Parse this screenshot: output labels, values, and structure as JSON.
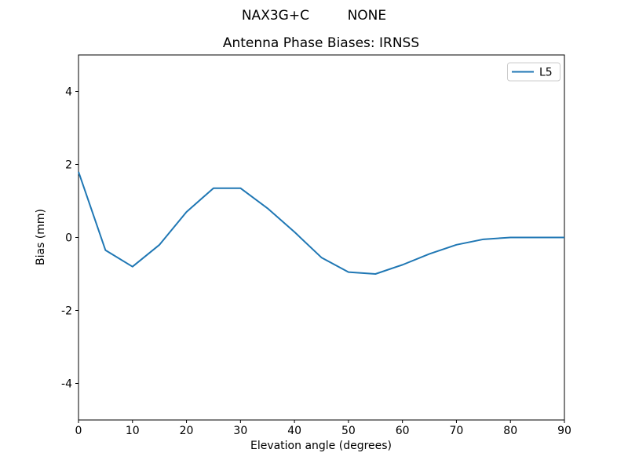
{
  "suptitle": "NAX3G+C         NONE",
  "colors": {
    "background": "#ffffff",
    "spine": "#000000",
    "legend_border": "#cccccc",
    "series_blue": "#1f77b4"
  },
  "chart_data": {
    "type": "line",
    "title": "Antenna Phase Biases: IRNSS",
    "xlabel": "Elevation angle (degrees)",
    "ylabel": "Bias (mm)",
    "xlim": [
      0,
      90
    ],
    "ylim": [
      -5,
      5
    ],
    "xticks": [
      0,
      10,
      20,
      30,
      40,
      50,
      60,
      70,
      80,
      90
    ],
    "yticks": [
      -4,
      -2,
      0,
      2,
      4
    ],
    "grid": false,
    "legend": {
      "position": "upper right",
      "entries": [
        "L5"
      ]
    },
    "x": [
      0,
      5,
      10,
      15,
      20,
      25,
      30,
      35,
      40,
      45,
      50,
      55,
      60,
      65,
      70,
      75,
      80,
      85,
      90
    ],
    "series": [
      {
        "name": "L5",
        "color": "#1f77b4",
        "values": [
          1.8,
          -0.35,
          -0.8,
          -0.2,
          0.7,
          1.35,
          1.35,
          0.8,
          0.15,
          -0.55,
          -0.95,
          -1.0,
          -0.75,
          -0.45,
          -0.2,
          -0.05,
          0.0,
          0.0,
          0.0
        ]
      }
    ]
  }
}
